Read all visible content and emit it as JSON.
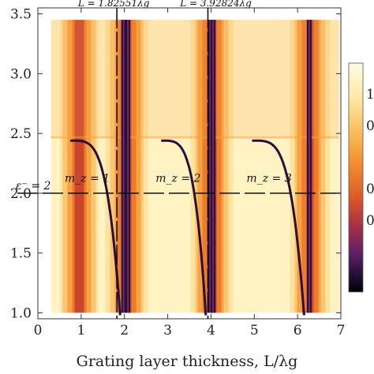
{
  "chart_data": {
    "type": "heatmap",
    "xlabel": "Grating layer thickness, L/λg",
    "ylabel": "",
    "xlim": [
      0,
      7
    ],
    "ylim": [
      0.95,
      3.55
    ],
    "x_ticks": [
      "0",
      "1",
      "2",
      "3",
      "4",
      "5",
      "6",
      "7"
    ],
    "y_ticks": [
      "1.0",
      "1.5",
      "2.0",
      "2.5",
      "3.0",
      "3.5"
    ],
    "resonance_x": [
      0.93,
      2.0,
      2.05,
      3.95,
      4.0,
      6.25
    ],
    "kink_y": 2.47,
    "vertical_lines": [
      {
        "x": 1.82551,
        "label": "L = 1.82551λg"
      },
      {
        "x": 3.92824,
        "label": "L = 3.92824λg"
      }
    ],
    "horizontal_line": {
      "y": 2.0,
      "label": "ε⁻ = 2"
    },
    "mode_labels": [
      {
        "text": "m_z = 1",
        "x": 0.85,
        "y": 2.12
      },
      {
        "text": "m_z = 2",
        "x": 2.95,
        "y": 2.12
      },
      {
        "text": "m_z = 3",
        "x": 5.05,
        "y": 2.12
      }
    ],
    "colorbar": {
      "labels": [
        "1",
        "0",
        "0",
        "0"
      ],
      "colors": [
        "#fffbe6",
        "#fde9a8",
        "#fbbd5a",
        "#f28a2c",
        "#d9542a",
        "#a12e4a",
        "#5a1f63",
        "#1b0d2e",
        "#000004"
      ]
    },
    "grid": false
  }
}
